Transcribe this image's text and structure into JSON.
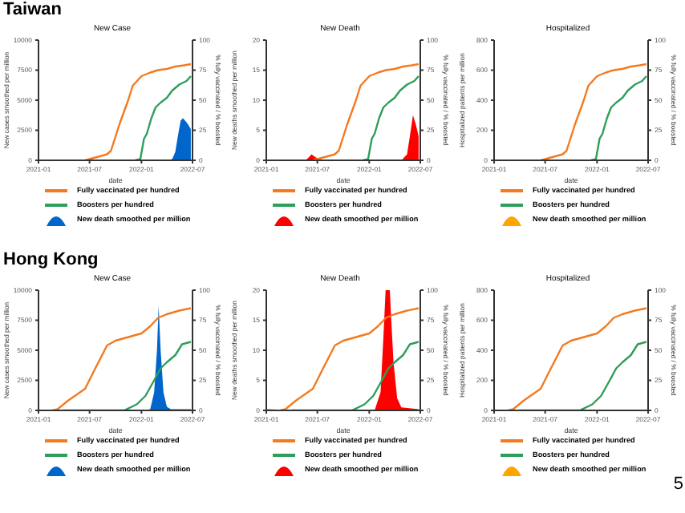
{
  "chart_data": [
    {
      "type": "line",
      "title": "New Case",
      "annotations": [
        "Taiwan"
      ],
      "xlabel": "date",
      "ylabel": "New cases smoothed per million",
      "y2label": "% fully vaccinated / % boosted",
      "xlim": [
        "2021-01",
        "2022-07"
      ],
      "xticks": [
        "2021-01",
        "2021-07",
        "2022-01",
        "2022-07"
      ],
      "ylim": [
        0,
        10000
      ],
      "yticks": [
        0,
        2500,
        5000,
        7500,
        10000
      ],
      "y2lim": [
        0,
        100
      ],
      "y2ticks": [
        0,
        25,
        50,
        75,
        100
      ],
      "grid": false,
      "legend": "bottom",
      "marker": "none",
      "line_style": "solid",
      "series": [
        {
          "name": "Fully vaccinated per hundred",
          "color": "#f47a20",
          "axis": "y2",
          "x": [
            "2021-06-15",
            "2021-07-01",
            "2021-08-01",
            "2021-09-01",
            "2021-09-15",
            "2021-10-15",
            "2021-11-15",
            "2021-12-01",
            "2022-01-01",
            "2022-02-01",
            "2022-03-01",
            "2022-04-01",
            "2022-05-01",
            "2022-06-01",
            "2022-06-25"
          ],
          "values": [
            0,
            1,
            3,
            5,
            8,
            30,
            50,
            62,
            70,
            73,
            75,
            76,
            78,
            79,
            80
          ]
        },
        {
          "name": "Boosters per hundred",
          "color": "#2e9e5b",
          "axis": "y2",
          "x": [
            "2021-12-10",
            "2021-12-28",
            "2022-01-10",
            "2022-01-20",
            "2022-02-05",
            "2022-02-20",
            "2022-03-10",
            "2022-04-01",
            "2022-04-20",
            "2022-05-15",
            "2022-06-10",
            "2022-06-25"
          ],
          "values": [
            0,
            1,
            18,
            22,
            35,
            44,
            48,
            52,
            58,
            63,
            66,
            70
          ]
        },
        {
          "name": "New death smoothed per million",
          "type": "area",
          "color": "#0066cc",
          "axis": "y",
          "x": [
            "2022-04-01",
            "2022-04-20",
            "2022-05-01",
            "2022-05-10",
            "2022-05-20",
            "2022-05-28",
            "2022-06-05",
            "2022-06-15",
            "2022-06-25"
          ],
          "values": [
            0,
            100,
            700,
            2000,
            3300,
            3500,
            3300,
            3000,
            2600
          ]
        }
      ]
    },
    {
      "type": "line",
      "title": "New Death",
      "xlabel": "date",
      "ylabel": "New deaths smoothed per million",
      "y2label": "% fully vaccinated / % boosted",
      "xlim": [
        "2021-01",
        "2022-07"
      ],
      "xticks": [
        "2021-01",
        "2021-07",
        "2022-01",
        "2022-07"
      ],
      "ylim": [
        0,
        20
      ],
      "yticks": [
        0,
        5,
        10,
        15,
        20
      ],
      "y2lim": [
        0,
        100
      ],
      "y2ticks": [
        0,
        25,
        50,
        75,
        100
      ],
      "grid": false,
      "legend": "bottom",
      "marker": "none",
      "line_style": "solid",
      "series": [
        {
          "name": "Fully vaccinated per hundred",
          "color": "#f47a20",
          "axis": "y2",
          "x": [
            "2021-06-15",
            "2021-07-01",
            "2021-08-01",
            "2021-09-01",
            "2021-09-15",
            "2021-10-15",
            "2021-11-15",
            "2021-12-01",
            "2022-01-01",
            "2022-02-01",
            "2022-03-01",
            "2022-04-01",
            "2022-05-01",
            "2022-06-01",
            "2022-06-25"
          ],
          "values": [
            0,
            1,
            3,
            5,
            8,
            30,
            50,
            62,
            70,
            73,
            75,
            76,
            78,
            79,
            80
          ]
        },
        {
          "name": "Boosters per hundred",
          "color": "#2e9e5b",
          "axis": "y2",
          "x": [
            "2021-12-10",
            "2021-12-28",
            "2022-01-10",
            "2022-01-20",
            "2022-02-05",
            "2022-02-20",
            "2022-03-10",
            "2022-04-01",
            "2022-04-20",
            "2022-05-15",
            "2022-06-10",
            "2022-06-25"
          ],
          "values": [
            0,
            1,
            18,
            22,
            35,
            44,
            48,
            52,
            58,
            63,
            66,
            70
          ]
        },
        {
          "name": "New death smoothed per million",
          "type": "area",
          "color": "#ff0000",
          "axis": "y",
          "x": [
            "2021-05-20",
            "2021-06-01",
            "2021-06-10",
            "2021-06-25",
            "2021-07-10",
            "2021-08-01",
            "2022-04-25",
            "2022-05-15",
            "2022-05-25",
            "2022-06-05",
            "2022-06-15",
            "2022-06-25"
          ],
          "values": [
            0,
            0.5,
            1,
            0.5,
            0.2,
            0,
            0,
            1,
            4,
            7.5,
            6,
            4
          ]
        }
      ]
    },
    {
      "type": "line",
      "title": "Hospitalized",
      "xlabel": "date",
      "ylabel": "Hospitalized patients per million",
      "y2label": "% fully vaccinated / % boosted",
      "xlim": [
        "2021-01",
        "2022-07"
      ],
      "xticks": [
        "2021-01",
        "2021-07",
        "2022-01",
        "2022-07"
      ],
      "ylim": [
        0,
        800
      ],
      "yticks": [
        0,
        200,
        400,
        600,
        800
      ],
      "y2lim": [
        0,
        100
      ],
      "y2ticks": [
        0,
        25,
        50,
        75,
        100
      ],
      "grid": false,
      "legend": "bottom",
      "marker": "none",
      "line_style": "solid",
      "series": [
        {
          "name": "Fully vaccinated per hundred",
          "color": "#f47a20",
          "axis": "y2",
          "x": [
            "2021-06-15",
            "2021-07-01",
            "2021-08-01",
            "2021-09-01",
            "2021-09-15",
            "2021-10-15",
            "2021-11-15",
            "2021-12-01",
            "2022-01-01",
            "2022-02-01",
            "2022-03-01",
            "2022-04-01",
            "2022-05-01",
            "2022-06-01",
            "2022-06-25"
          ],
          "values": [
            0,
            1,
            3,
            5,
            8,
            30,
            50,
            62,
            70,
            73,
            75,
            76,
            78,
            79,
            80
          ]
        },
        {
          "name": "Boosters per hundred",
          "color": "#2e9e5b",
          "axis": "y2",
          "x": [
            "2021-12-10",
            "2021-12-28",
            "2022-01-10",
            "2022-01-20",
            "2022-02-05",
            "2022-02-20",
            "2022-03-10",
            "2022-04-01",
            "2022-04-20",
            "2022-05-15",
            "2022-06-10",
            "2022-06-25"
          ],
          "values": [
            0,
            1,
            18,
            22,
            35,
            44,
            48,
            52,
            58,
            63,
            66,
            70
          ]
        },
        {
          "name": "New death smoothed per million",
          "type": "area",
          "color": "#ffa500",
          "axis": "y"
        }
      ]
    },
    {
      "type": "line",
      "title": "New Case",
      "annotations": [
        "Hong Kong"
      ],
      "xlabel": "date",
      "ylabel": "New cases smoothed per million",
      "y2label": "% fully vaccinated / % boosted",
      "xlim": [
        "2021-01",
        "2022-07"
      ],
      "xticks": [
        "2021-01",
        "2021-07",
        "2022-01",
        "2022-07"
      ],
      "ylim": [
        0,
        10000
      ],
      "yticks": [
        0,
        2500,
        5000,
        7500,
        10000
      ],
      "y2lim": [
        0,
        100
      ],
      "y2ticks": [
        0,
        25,
        50,
        75,
        100
      ],
      "grid": false,
      "legend": "bottom",
      "marker": "none",
      "line_style": "solid",
      "series": [
        {
          "name": "Fully vaccinated per hundred",
          "color": "#f47a20",
          "axis": "y2",
          "x": [
            "2021-02-20",
            "2021-03-10",
            "2021-04-15",
            "2021-06-15",
            "2021-07-15",
            "2021-09-01",
            "2021-10-01",
            "2021-12-01",
            "2022-01-01",
            "2022-02-01",
            "2022-03-01",
            "2022-04-01",
            "2022-05-15",
            "2022-06-25"
          ],
          "values": [
            0,
            1,
            8,
            18,
            32,
            54,
            58,
            62,
            64,
            70,
            77,
            80,
            83,
            85
          ]
        },
        {
          "name": "Boosters per hundred",
          "color": "#2e9e5b",
          "axis": "y2",
          "x": [
            "2021-04-01",
            "2021-11-01",
            "2021-12-15",
            "2022-01-15",
            "2022-02-15",
            "2022-03-10",
            "2022-04-01",
            "2022-05-01",
            "2022-05-25",
            "2022-06-25"
          ],
          "values": [
            0,
            0,
            5,
            12,
            25,
            35,
            40,
            46,
            55,
            57
          ]
        },
        {
          "name": "New death smoothed per million",
          "type": "area",
          "color": "#0066cc",
          "axis": "y",
          "x": [
            "2022-01-15",
            "2022-02-01",
            "2022-02-15",
            "2022-02-25",
            "2022-03-03",
            "2022-03-10",
            "2022-03-20",
            "2022-04-01",
            "2022-04-15",
            "2022-06-25"
          ],
          "values": [
            0,
            100,
            1500,
            5000,
            8700,
            5000,
            1500,
            300,
            100,
            100
          ]
        }
      ]
    },
    {
      "type": "line",
      "title": "New Death",
      "xlabel": "date",
      "ylabel": "New deaths smoothed per million",
      "y2label": "% fully vaccinated / % boosted",
      "xlim": [
        "2021-01",
        "2022-07"
      ],
      "xticks": [
        "2021-01",
        "2021-07",
        "2022-01",
        "2022-07"
      ],
      "ylim": [
        0,
        20
      ],
      "yticks": [
        0,
        5,
        10,
        15,
        20
      ],
      "y2lim": [
        0,
        100
      ],
      "y2ticks": [
        0,
        25,
        50,
        75,
        100
      ],
      "grid": false,
      "legend": "bottom",
      "marker": "none",
      "line_style": "solid",
      "series": [
        {
          "name": "Fully vaccinated per hundred",
          "color": "#f47a20",
          "axis": "y2",
          "x": [
            "2021-02-20",
            "2021-03-10",
            "2021-04-15",
            "2021-06-15",
            "2021-07-15",
            "2021-09-01",
            "2021-10-01",
            "2021-12-01",
            "2022-01-01",
            "2022-02-01",
            "2022-03-01",
            "2022-04-01",
            "2022-05-15",
            "2022-06-25"
          ],
          "values": [
            0,
            1,
            8,
            18,
            32,
            54,
            58,
            62,
            64,
            70,
            77,
            80,
            83,
            85
          ]
        },
        {
          "name": "Boosters per hundred",
          "color": "#2e9e5b",
          "axis": "y2",
          "x": [
            "2021-04-01",
            "2021-11-01",
            "2021-12-15",
            "2022-01-15",
            "2022-02-15",
            "2022-03-10",
            "2022-04-01",
            "2022-05-01",
            "2022-05-25",
            "2022-06-25"
          ],
          "values": [
            0,
            0,
            5,
            12,
            25,
            35,
            40,
            46,
            55,
            57
          ]
        },
        {
          "name": "New death smoothed per million",
          "type": "area",
          "color": "#ff0000",
          "axis": "y",
          "x": [
            "2021-01-01",
            "2021-03-01",
            "2022-01-20",
            "2022-02-10",
            "2022-02-20",
            "2022-02-28",
            "2022-03-05",
            "2022-03-15",
            "2022-03-20",
            "2022-03-28",
            "2022-04-10",
            "2022-04-25",
            "2022-06-25"
          ],
          "values": [
            0.2,
            0.1,
            0,
            3,
            12,
            20,
            20,
            20,
            15,
            8,
            2,
            0.5,
            0.2
          ]
        }
      ]
    },
    {
      "type": "line",
      "title": "Hospitalized",
      "annotations": [
        "5"
      ],
      "xlabel": "date",
      "ylabel": "Hospitalized patients per million",
      "y2label": "% fully vaccinated / % boosted",
      "xlim": [
        "2021-01",
        "2022-07"
      ],
      "xticks": [
        "2021-01",
        "2021-07",
        "2022-01",
        "2022-07"
      ],
      "ylim": [
        0,
        800
      ],
      "yticks": [
        0,
        200,
        400,
        600,
        800
      ],
      "y2lim": [
        0,
        100
      ],
      "y2ticks": [
        0,
        25,
        50,
        75,
        100
      ],
      "grid": false,
      "legend": "bottom",
      "marker": "none",
      "line_style": "solid",
      "series": [
        {
          "name": "Fully vaccinated per hundred",
          "color": "#f47a20",
          "axis": "y2",
          "x": [
            "2021-02-20",
            "2021-03-10",
            "2021-04-15",
            "2021-06-15",
            "2021-07-15",
            "2021-09-01",
            "2021-10-01",
            "2021-12-01",
            "2022-01-01",
            "2022-02-01",
            "2022-03-01",
            "2022-04-01",
            "2022-05-15",
            "2022-06-25"
          ],
          "values": [
            0,
            1,
            8,
            18,
            32,
            54,
            58,
            62,
            64,
            70,
            77,
            80,
            83,
            85
          ]
        },
        {
          "name": "Boosters per hundred",
          "color": "#2e9e5b",
          "axis": "y2",
          "x": [
            "2021-04-01",
            "2021-11-01",
            "2021-12-15",
            "2022-01-15",
            "2022-02-15",
            "2022-03-10",
            "2022-04-01",
            "2022-05-01",
            "2022-05-25",
            "2022-06-25"
          ],
          "values": [
            0,
            0,
            5,
            12,
            25,
            35,
            40,
            46,
            55,
            57
          ]
        },
        {
          "name": "New death smoothed per million",
          "type": "area",
          "color": "#ffa500",
          "axis": "y"
        }
      ]
    }
  ]
}
